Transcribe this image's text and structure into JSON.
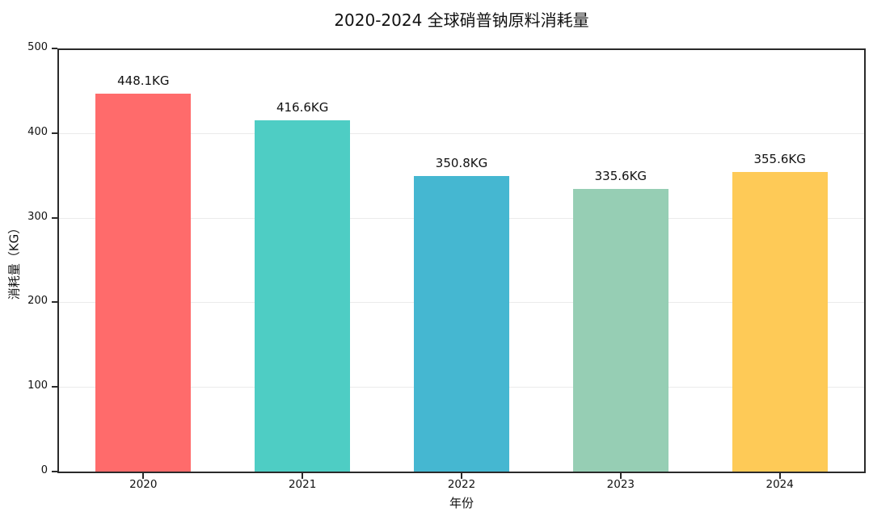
{
  "chart_data": {
    "type": "bar",
    "title": "2020-2024 全球硝普钠原料消耗量",
    "xlabel": "年份",
    "ylabel": "消耗量（KG）",
    "categories": [
      "2020",
      "2021",
      "2022",
      "2023",
      "2024"
    ],
    "values": [
      448.1,
      416.6,
      350.8,
      335.6,
      355.6
    ],
    "bar_labels": [
      "448.1KG",
      "416.6KG",
      "350.8KG",
      "335.6KG",
      "355.6KG"
    ],
    "bar_colors": [
      "#FF6B6B",
      "#4ECDC4",
      "#45B7D1",
      "#96CEB4",
      "#FECA57"
    ],
    "ylim": [
      0,
      500
    ],
    "yticks": [
      0,
      100,
      200,
      300,
      400,
      500
    ],
    "grid": "horizontal, behind bars",
    "legend": "none",
    "axis_color": "#2a2a2a",
    "grid_color": "rgba(0,0,0,0.08)",
    "background_color": "#ffffff"
  }
}
